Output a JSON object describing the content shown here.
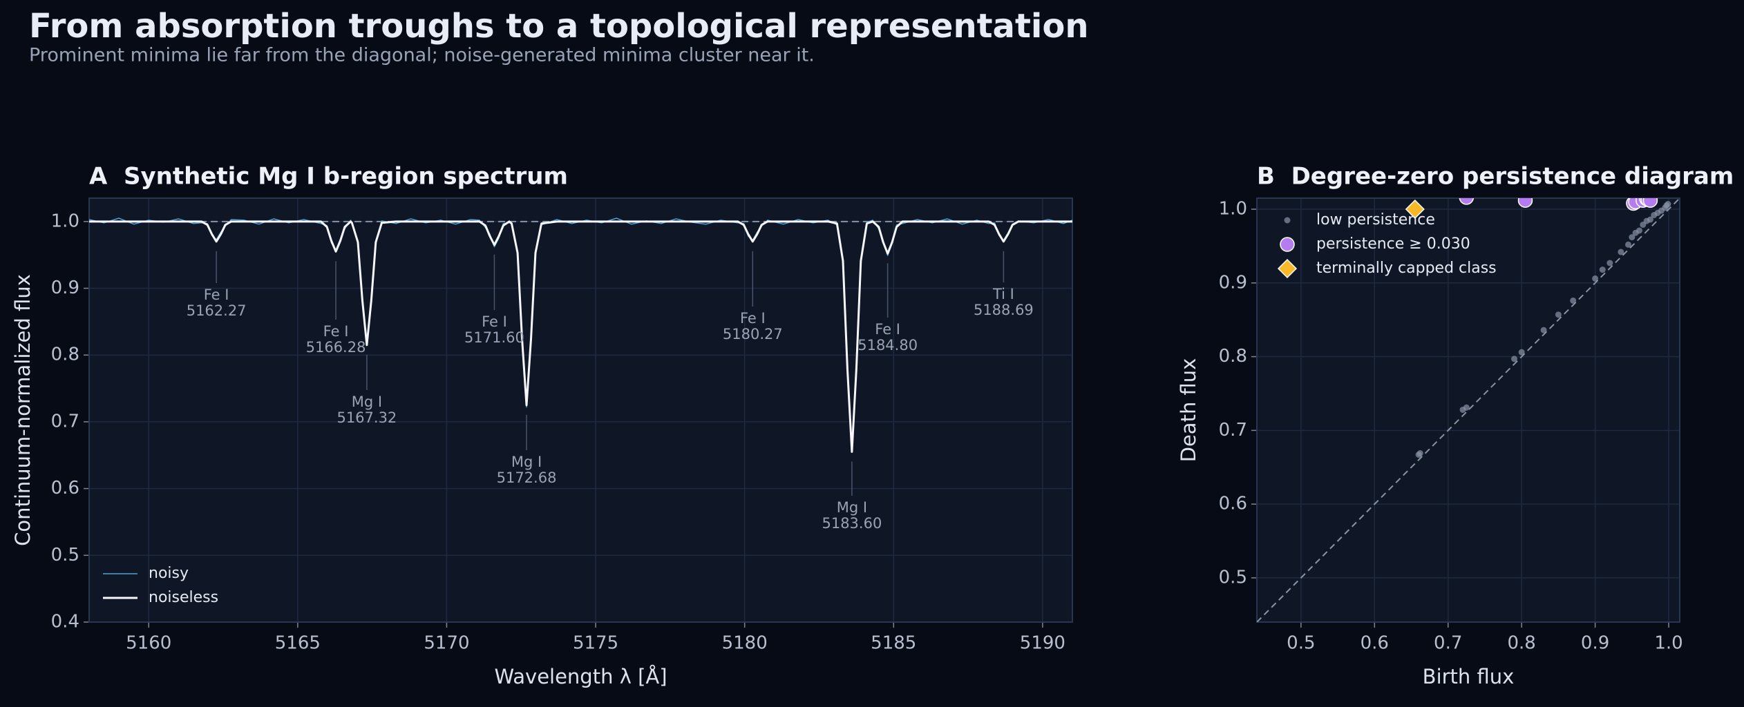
{
  "title": "From absorption troughs to a topological representation",
  "subtitle": "Prominent minima lie far from the diagonal; noise-generated minima cluster near it.",
  "chart_data": [
    {
      "type": "line",
      "title": "A  Synthetic Mg I b-region spectrum",
      "x_label": "Wavelength λ [Å]",
      "y_label": "Continuum-normalized flux",
      "xlim": [
        5158,
        5191
      ],
      "ylim": [
        0.4,
        1.035
      ],
      "xticks": [
        5160,
        5165,
        5170,
        5175,
        5180,
        5185,
        5190
      ],
      "yticks": [
        0.4,
        0.5,
        0.6,
        0.7,
        0.8,
        0.9,
        {
          "value": 1,
          "label": "1.0"
        }
      ],
      "grid": true,
      "legend": "lower left",
      "hline": 1,
      "x": [
        5158,
        5158.5,
        5159,
        5159.5,
        5160,
        5160.5,
        5161,
        5161.5,
        5161.77,
        5161.97,
        5162.12,
        5162.27,
        5162.42,
        5162.57,
        5162.77,
        5163.2,
        5163.7,
        5164.2,
        5164.7,
        5165.2,
        5165.78,
        5165.98,
        5166.13,
        5166.28,
        5166.43,
        5166.58,
        5166.78,
        5166.82,
        5167.02,
        5167.17,
        5167.32,
        5167.47,
        5167.62,
        5167.82,
        5168.3,
        5168.8,
        5169.3,
        5169.8,
        5170.3,
        5170.8,
        5171.1,
        5171.3,
        5171.45,
        5171.6,
        5171.75,
        5171.9,
        5172.1,
        5172.18,
        5172.38,
        5172.53,
        5172.68,
        5172.83,
        5172.98,
        5173.18,
        5173.7,
        5174.2,
        5174.7,
        5175.2,
        5175.7,
        5176.2,
        5176.7,
        5177.2,
        5177.7,
        5178.2,
        5178.7,
        5179.2,
        5179.77,
        5179.97,
        5180.12,
        5180.27,
        5180.42,
        5180.57,
        5180.77,
        5181.3,
        5181.8,
        5182.3,
        5182.8,
        5183.1,
        5183.3,
        5183.45,
        5183.6,
        5183.75,
        5183.9,
        5184.1,
        5184.3,
        5184.5,
        5184.65,
        5184.8,
        5184.95,
        5185.1,
        5185.3,
        5185.8,
        5186.3,
        5186.8,
        5187.3,
        5187.8,
        5188.19,
        5188.39,
        5188.54,
        5188.69,
        5188.84,
        5188.99,
        5189.19,
        5189.7,
        5190.2,
        5190.7,
        5191
      ],
      "series": [
        {
          "name": "noisy",
          "color": "#4fa3d1",
          "values": [
            1.003,
            0.998,
            1.005,
            0.996,
            1.002,
            0.999,
            1.004,
            0.997,
            0.998,
            0.997,
            0.979,
            0.973,
            0.984,
            0.993,
            1.003,
            1.002,
            0.996,
            1.004,
            0.998,
            1.003,
            0.997,
            0.994,
            0.968,
            0.957,
            0.974,
            0.989,
            1.002,
            0.996,
            0.972,
            0.879,
            0.818,
            0.885,
            0.966,
            1.001,
            0.997,
            1.004,
            0.998,
            1.002,
            0.996,
            1.003,
            1.002,
            0.991,
            0.981,
            0.962,
            0.975,
            0.997,
            0.998,
            0.999,
            0.951,
            0.827,
            0.722,
            0.821,
            0.956,
            0.995,
            1.003,
            0.997,
            1.002,
            0.998,
            1.005,
            0.996,
            1.001,
            0.997,
            1.004,
            0.999,
            0.996,
            1.002,
            0.998,
            0.997,
            0.978,
            0.972,
            0.984,
            0.993,
            1.002,
            0.996,
            1.003,
            0.998,
            1.002,
            0.995,
            0.944,
            0.776,
            0.658,
            0.782,
            0.938,
            0.999,
            1.002,
            0.989,
            0.971,
            0.949,
            0.967,
            0.995,
            0.997,
            1.003,
            0.998,
            1.004,
            0.996,
            1.002,
            0.997,
            0.998,
            0.979,
            0.972,
            0.983,
            0.996,
            1.001,
            0.998,
            1.003,
            0.997,
            1.002
          ]
        },
        {
          "name": "noiseless",
          "color": "#f5f7fa",
          "values": [
            1,
            1,
            1,
            1,
            1,
            1,
            1,
            1,
            1,
            0.995,
            0.981,
            0.97,
            0.981,
            0.995,
            1,
            1,
            1,
            1,
            1,
            1,
            1,
            0.992,
            0.971,
            0.955,
            0.971,
            0.992,
            1,
            0.998,
            0.969,
            0.882,
            0.815,
            0.882,
            0.969,
            0.998,
            1,
            1,
            1,
            1,
            1,
            1,
            1,
            0.994,
            0.978,
            0.965,
            0.978,
            0.994,
            1,
            0.997,
            0.953,
            0.824,
            0.725,
            0.824,
            0.953,
            0.997,
            1,
            1,
            1,
            1,
            1,
            1,
            1,
            1,
            1,
            1,
            1,
            1,
            1,
            0.995,
            0.981,
            0.97,
            0.981,
            0.995,
            1,
            1,
            1,
            1,
            1,
            0.997,
            0.941,
            0.779,
            0.655,
            0.779,
            0.941,
            0.997,
            1,
            0.992,
            0.969,
            0.952,
            0.969,
            0.992,
            1,
            1,
            1,
            1,
            1,
            1,
            1,
            0.995,
            0.981,
            0.97,
            0.981,
            0.995,
            1,
            1,
            1,
            1,
            1
          ]
        }
      ],
      "annotations": [
        {
          "species": "Fe I",
          "wavelength": 5162.27
        },
        {
          "species": "Fe I",
          "wavelength": 5166.28
        },
        {
          "species": "Mg I",
          "wavelength": 5167.32
        },
        {
          "species": "Fe I",
          "wavelength": 5171.6,
          "label": "5171.60"
        },
        {
          "species": "Mg I",
          "wavelength": 5172.68
        },
        {
          "species": "Fe I",
          "wavelength": 5180.27
        },
        {
          "species": "Mg I",
          "wavelength": 5183.6,
          "label": "5183.60"
        },
        {
          "species": "Fe I",
          "wavelength": 5184.8,
          "label": "5184.80"
        },
        {
          "species": "Ti I",
          "wavelength": 5188.69
        }
      ]
    },
    {
      "type": "scatter",
      "title": "B  Degree-zero persistence diagram",
      "x_label": "Birth flux",
      "y_label": "Death flux",
      "xlim": [
        0.44,
        1.015
      ],
      "ylim": [
        0.44,
        1.015
      ],
      "xticks": [
        0.5,
        0.6,
        0.7,
        0.8,
        0.9,
        {
          "value": 1,
          "label": "1.0"
        }
      ],
      "yticks": [
        0.5,
        0.6,
        0.7,
        0.8,
        0.9,
        {
          "value": 1,
          "label": "1.0"
        }
      ],
      "grid": true,
      "legend": "upper left",
      "series": [
        {
          "name": "low persistence",
          "color": "#8a94a6",
          "marker": "dot",
          "x": [
            0.66,
            0.662,
            0.72,
            0.725,
            0.79,
            0.8,
            0.83,
            0.85,
            0.87,
            0.9,
            0.91,
            0.92,
            0.935,
            0.945,
            0.95,
            0.955,
            0.96,
            0.965,
            0.97,
            0.975,
            0.98,
            0.985,
            0.99,
            0.995,
            0.997,
            0.999
          ],
          "values": [
            0.667,
            0.669,
            0.728,
            0.731,
            0.797,
            0.806,
            0.836,
            0.857,
            0.876,
            0.906,
            0.918,
            0.927,
            0.942,
            0.952,
            0.962,
            0.968,
            0.971,
            0.979,
            0.984,
            0.986,
            0.992,
            0.995,
            0.998,
            1.002,
            1.005,
            1.007
          ]
        },
        {
          "name": "persistence ≥ 0.030",
          "color": "#b57cf0",
          "marker": "circle",
          "x": [
            0.725,
            0.805,
            0.952,
            0.955,
            0.965,
            0.97,
            0.972,
            0.975
          ],
          "values": [
            1.016,
            1.012,
            1.008,
            1.01,
            1.012,
            1.014,
            1.013,
            1.012
          ]
        },
        {
          "name": "terminally capped class",
          "color": "#f7b928",
          "marker": "diamond",
          "x": [
            0.655
          ],
          "values": [
            1
          ]
        }
      ]
    }
  ]
}
